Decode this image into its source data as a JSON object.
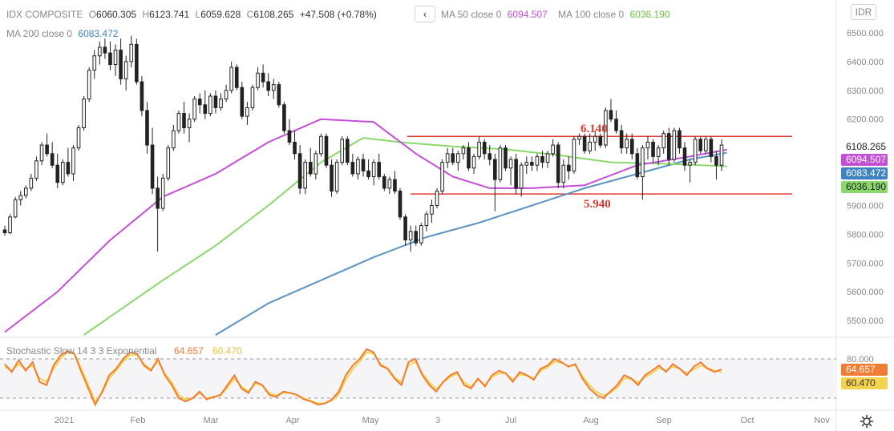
{
  "symbol": "IDX COMPOSITE",
  "ohlc": {
    "open_label": "O",
    "open": "6060.305",
    "high_label": "H",
    "high": "6123.741",
    "low_label": "L",
    "low": "6059.628",
    "close_label": "C",
    "close": "6108.265",
    "change": "+47.508 (+0.78%)"
  },
  "back_button_glyph": "‹",
  "currency_button": "IDR",
  "indicators": {
    "ma50_label": "MA 50 close 0",
    "ma50_value": "6094.507",
    "ma100_label": "MA 100 close 0",
    "ma100_value": "6036.190",
    "ma200_label": "MA 200 close 0",
    "ma200_value": "6083.472"
  },
  "oscillator": {
    "label": "Stochastic Slow 14 3 3 Exponential",
    "k_value": "64.657",
    "d_value": "60.470",
    "upper_level": "80.000"
  },
  "price_tags": {
    "last": "6108.265",
    "ma50": "6094.507",
    "ma200": "6083.472",
    "ma100": "6036.190",
    "stoch_k": "64.657",
    "stoch_d": "60.470"
  },
  "annotations": {
    "resistance": "6.140",
    "support": "5.940"
  },
  "colors": {
    "up": "#222222",
    "down": "#222222",
    "ma50": "#c44fd6",
    "ma100": "#8bd86a",
    "ma200": "#5b93c4",
    "level": "#e03c31",
    "stoch_k": "#f07d33",
    "stoch_d": "#f5d34e",
    "last_tag": "#ffffff"
  },
  "chart_data": {
    "type": "candlestick",
    "y_ticks": [
      "6500.000",
      "6400.000",
      "6300.000",
      "6200.000",
      "6100.000",
      "6000.000",
      "5900.000",
      "5800.000",
      "5700.000",
      "5600.000",
      "5500.000"
    ],
    "x_ticks": [
      "2021",
      "Feb",
      "Mar",
      "Apr",
      "May",
      "3",
      "Jul",
      "Aug",
      "Sep",
      "Oct",
      "Nov"
    ],
    "ylim": [
      5450,
      6560
    ],
    "levels": [
      6140,
      5940
    ],
    "candles": [
      [
        5815,
        5830,
        5795,
        5805
      ],
      [
        5805,
        5870,
        5800,
        5860
      ],
      [
        5860,
        5930,
        5855,
        5920
      ],
      [
        5920,
        5950,
        5900,
        5935
      ],
      [
        5935,
        5970,
        5925,
        5960
      ],
      [
        5960,
        6010,
        5950,
        5995
      ],
      [
        5995,
        6070,
        5985,
        6055
      ],
      [
        6055,
        6120,
        6040,
        6110
      ],
      [
        6110,
        6150,
        6070,
        6080
      ],
      [
        6080,
        6120,
        6030,
        6040
      ],
      [
        6040,
        6080,
        5960,
        5980
      ],
      [
        5980,
        6060,
        5970,
        6050
      ],
      [
        6050,
        6100,
        6000,
        6010
      ],
      [
        6010,
        6110,
        5985,
        6100
      ],
      [
        6100,
        6180,
        6090,
        6170
      ],
      [
        6170,
        6280,
        6160,
        6270
      ],
      [
        6270,
        6380,
        6260,
        6370
      ],
      [
        6370,
        6440,
        6340,
        6420
      ],
      [
        6420,
        6470,
        6390,
        6450
      ],
      [
        6450,
        6480,
        6410,
        6430
      ],
      [
        6430,
        6470,
        6370,
        6390
      ],
      [
        6390,
        6460,
        6350,
        6440
      ],
      [
        6440,
        6480,
        6320,
        6340
      ],
      [
        6340,
        6420,
        6300,
        6400
      ],
      [
        6400,
        6490,
        6380,
        6460
      ],
      [
        6460,
        6480,
        6320,
        6330
      ],
      [
        6330,
        6350,
        6210,
        6230
      ],
      [
        6230,
        6260,
        6080,
        6110
      ],
      [
        6110,
        6170,
        5940,
        5960
      ],
      [
        5960,
        6000,
        5740,
        5890
      ],
      [
        5890,
        6010,
        5880,
        5995
      ],
      [
        5995,
        6110,
        5985,
        6100
      ],
      [
        6100,
        6180,
        6090,
        6160
      ],
      [
        6160,
        6230,
        6150,
        6220
      ],
      [
        6220,
        6260,
        6150,
        6170
      ],
      [
        6170,
        6220,
        6120,
        6200
      ],
      [
        6200,
        6280,
        6190,
        6270
      ],
      [
        6270,
        6290,
        6220,
        6250
      ],
      [
        6250,
        6300,
        6200,
        6220
      ],
      [
        6220,
        6290,
        6210,
        6280
      ],
      [
        6280,
        6300,
        6220,
        6240
      ],
      [
        6240,
        6290,
        6230,
        6270
      ],
      [
        6270,
        6320,
        6260,
        6300
      ],
      [
        6300,
        6400,
        6290,
        6380
      ],
      [
        6380,
        6390,
        6300,
        6310
      ],
      [
        6310,
        6330,
        6200,
        6210
      ],
      [
        6210,
        6260,
        6180,
        6240
      ],
      [
        6240,
        6320,
        6230,
        6310
      ],
      [
        6310,
        6380,
        6300,
        6360
      ],
      [
        6360,
        6390,
        6310,
        6330
      ],
      [
        6330,
        6360,
        6280,
        6300
      ],
      [
        6300,
        6340,
        6270,
        6320
      ],
      [
        6320,
        6330,
        6240,
        6250
      ],
      [
        6250,
        6260,
        6150,
        6160
      ],
      [
        6160,
        6200,
        6110,
        6120
      ],
      [
        6120,
        6160,
        6060,
        6080
      ],
      [
        6080,
        6110,
        5940,
        5960
      ],
      [
        5960,
        6060,
        5940,
        6050
      ],
      [
        6050,
        6100,
        6000,
        6010
      ],
      [
        6010,
        6090,
        5990,
        6080
      ],
      [
        6080,
        6150,
        6070,
        6140
      ],
      [
        6140,
        6150,
        6030,
        6040
      ],
      [
        6040,
        6060,
        5930,
        5950
      ],
      [
        5950,
        6060,
        5940,
        6050
      ],
      [
        6050,
        6140,
        6040,
        6130
      ],
      [
        6130,
        6140,
        6040,
        6050
      ],
      [
        6050,
        6080,
        6000,
        6010
      ],
      [
        6010,
        6070,
        5990,
        6060
      ],
      [
        6060,
        6080,
        6000,
        6020
      ],
      [
        6020,
        6060,
        5990,
        6000
      ],
      [
        6000,
        6060,
        5970,
        6050
      ],
      [
        6050,
        6080,
        5990,
        6000
      ],
      [
        6000,
        6010,
        5950,
        5960
      ],
      [
        5960,
        6000,
        5940,
        5990
      ],
      [
        5990,
        6020,
        5940,
        5950
      ],
      [
        5950,
        5960,
        5850,
        5860
      ],
      [
        5860,
        5870,
        5760,
        5780
      ],
      [
        5780,
        5830,
        5740,
        5810
      ],
      [
        5810,
        5830,
        5760,
        5770
      ],
      [
        5770,
        5840,
        5760,
        5830
      ],
      [
        5830,
        5880,
        5810,
        5870
      ],
      [
        5870,
        5920,
        5840,
        5900
      ],
      [
        5900,
        5960,
        5890,
        5950
      ],
      [
        5950,
        6060,
        5940,
        6050
      ],
      [
        6050,
        6100,
        6030,
        6080
      ],
      [
        6080,
        6100,
        6040,
        6050
      ],
      [
        6050,
        6090,
        6020,
        6080
      ],
      [
        6080,
        6110,
        6060,
        6100
      ],
      [
        6100,
        6120,
        6020,
        6030
      ],
      [
        6030,
        6080,
        6010,
        6070
      ],
      [
        6070,
        6140,
        6060,
        6120
      ],
      [
        6120,
        6130,
        6060,
        6080
      ],
      [
        6080,
        6110,
        6040,
        6060
      ],
      [
        6060,
        6080,
        5880,
        5990
      ],
      [
        5990,
        6110,
        5980,
        6100
      ],
      [
        6100,
        6110,
        6020,
        6030
      ],
      [
        6030,
        6070,
        5970,
        6060
      ],
      [
        6060,
        6080,
        5940,
        5960
      ],
      [
        5960,
        6050,
        5930,
        6040
      ],
      [
        6040,
        6070,
        6010,
        6050
      ],
      [
        6050,
        6070,
        6020,
        6040
      ],
      [
        6040,
        6080,
        6020,
        6070
      ],
      [
        6070,
        6090,
        6030,
        6050
      ],
      [
        6050,
        6090,
        6030,
        6080
      ],
      [
        6080,
        6130,
        6070,
        6110
      ],
      [
        6110,
        6120,
        5960,
        5980
      ],
      [
        5980,
        6060,
        5960,
        6040
      ],
      [
        6040,
        6070,
        5990,
        6020
      ],
      [
        6020,
        6140,
        6010,
        6130
      ],
      [
        6130,
        6150,
        6110,
        6140
      ],
      [
        6140,
        6150,
        6080,
        6090
      ],
      [
        6090,
        6150,
        6080,
        6120
      ],
      [
        6120,
        6160,
        6090,
        6140
      ],
      [
        6140,
        6150,
        6100,
        6110
      ],
      [
        6110,
        6240,
        6100,
        6230
      ],
      [
        6230,
        6270,
        6190,
        6200
      ],
      [
        6200,
        6230,
        6150,
        6160
      ],
      [
        6160,
        6180,
        6080,
        6100
      ],
      [
        6100,
        6150,
        6080,
        6130
      ],
      [
        6130,
        6150,
        6060,
        6080
      ],
      [
        6080,
        6100,
        5990,
        6000
      ],
      [
        6000,
        6110,
        5920,
        6100
      ],
      [
        6100,
        6140,
        6060,
        6120
      ],
      [
        6120,
        6130,
        6050,
        6070
      ],
      [
        6070,
        6110,
        6040,
        6100
      ],
      [
        6100,
        6160,
        6080,
        6150
      ],
      [
        6150,
        6170,
        6040,
        6060
      ],
      [
        6060,
        6170,
        6050,
        6160
      ],
      [
        6160,
        6170,
        6080,
        6100
      ],
      [
        6100,
        6120,
        6020,
        6040
      ],
      [
        6040,
        6060,
        5980,
        6050
      ],
      [
        6050,
        6140,
        6040,
        6130
      ],
      [
        6130,
        6140,
        6080,
        6090
      ],
      [
        6090,
        6140,
        6080,
        6130
      ],
      [
        6130,
        6140,
        6050,
        6070
      ],
      [
        6070,
        6090,
        5990,
        6040
      ],
      [
        6040,
        6130,
        6020,
        6110
      ]
    ],
    "ma50": [
      [
        0,
        5460
      ],
      [
        10,
        5600
      ],
      [
        20,
        5780
      ],
      [
        30,
        5930
      ],
      [
        40,
        6010
      ],
      [
        50,
        6120
      ],
      [
        60,
        6200
      ],
      [
        70,
        6190
      ],
      [
        78,
        6080
      ],
      [
        85,
        6000
      ],
      [
        92,
        5960
      ],
      [
        100,
        5960
      ],
      [
        110,
        5970
      ],
      [
        120,
        6040
      ],
      [
        130,
        6070
      ],
      [
        137,
        6094
      ]
    ],
    "ma100": [
      [
        15,
        5450
      ],
      [
        30,
        5640
      ],
      [
        40,
        5760
      ],
      [
        50,
        5900
      ],
      [
        60,
        6050
      ],
      [
        68,
        6135
      ],
      [
        75,
        6120
      ],
      [
        85,
        6105
      ],
      [
        95,
        6095
      ],
      [
        105,
        6075
      ],
      [
        115,
        6050
      ],
      [
        125,
        6045
      ],
      [
        137,
        6036
      ]
    ],
    "ma200": [
      [
        40,
        5450
      ],
      [
        50,
        5560
      ],
      [
        60,
        5640
      ],
      [
        70,
        5720
      ],
      [
        80,
        5790
      ],
      [
        90,
        5840
      ],
      [
        100,
        5900
      ],
      [
        110,
        5960
      ],
      [
        120,
        6010
      ],
      [
        130,
        6060
      ],
      [
        137,
        6083
      ]
    ],
    "stoch_levels": [
      80,
      20
    ],
    "stoch_k": [
      72,
      60,
      78,
      62,
      75,
      45,
      40,
      70,
      85,
      92,
      88,
      60,
      35,
      10,
      30,
      55,
      65,
      80,
      90,
      88,
      70,
      62,
      80,
      55,
      40,
      20,
      15,
      20,
      30,
      18,
      22,
      25,
      40,
      55,
      35,
      28,
      45,
      40,
      25,
      22,
      30,
      28,
      25,
      18,
      15,
      10,
      12,
      18,
      30,
      55,
      70,
      80,
      95,
      90,
      70,
      65,
      50,
      40,
      75,
      80,
      55,
      40,
      30,
      45,
      55,
      60,
      40,
      35,
      50,
      38,
      55,
      62,
      58,
      45,
      60,
      55,
      48,
      65,
      70,
      80,
      75,
      68,
      72,
      50,
      35,
      25,
      20,
      30,
      40,
      55,
      50,
      40,
      55,
      62,
      70,
      60,
      72,
      65,
      55,
      68,
      75,
      65,
      60,
      64
    ],
    "stoch_d": [
      68,
      62,
      72,
      65,
      70,
      50,
      45,
      65,
      80,
      90,
      88,
      65,
      40,
      15,
      28,
      50,
      62,
      76,
      86,
      86,
      72,
      64,
      76,
      58,
      44,
      25,
      18,
      20,
      28,
      20,
      22,
      24,
      36,
      50,
      38,
      30,
      42,
      40,
      28,
      24,
      28,
      28,
      25,
      20,
      16,
      12,
      12,
      16,
      26,
      48,
      64,
      76,
      90,
      88,
      72,
      66,
      52,
      44,
      70,
      76,
      58,
      44,
      34,
      44,
      52,
      58,
      44,
      38,
      48,
      40,
      52,
      58,
      58,
      48,
      56,
      55,
      50,
      62,
      67,
      76,
      74,
      69,
      70,
      54,
      40,
      30,
      24,
      28,
      36,
      50,
      50,
      44,
      52,
      58,
      66,
      62,
      68,
      65,
      58,
      64,
      70,
      66,
      62,
      60
    ]
  }
}
